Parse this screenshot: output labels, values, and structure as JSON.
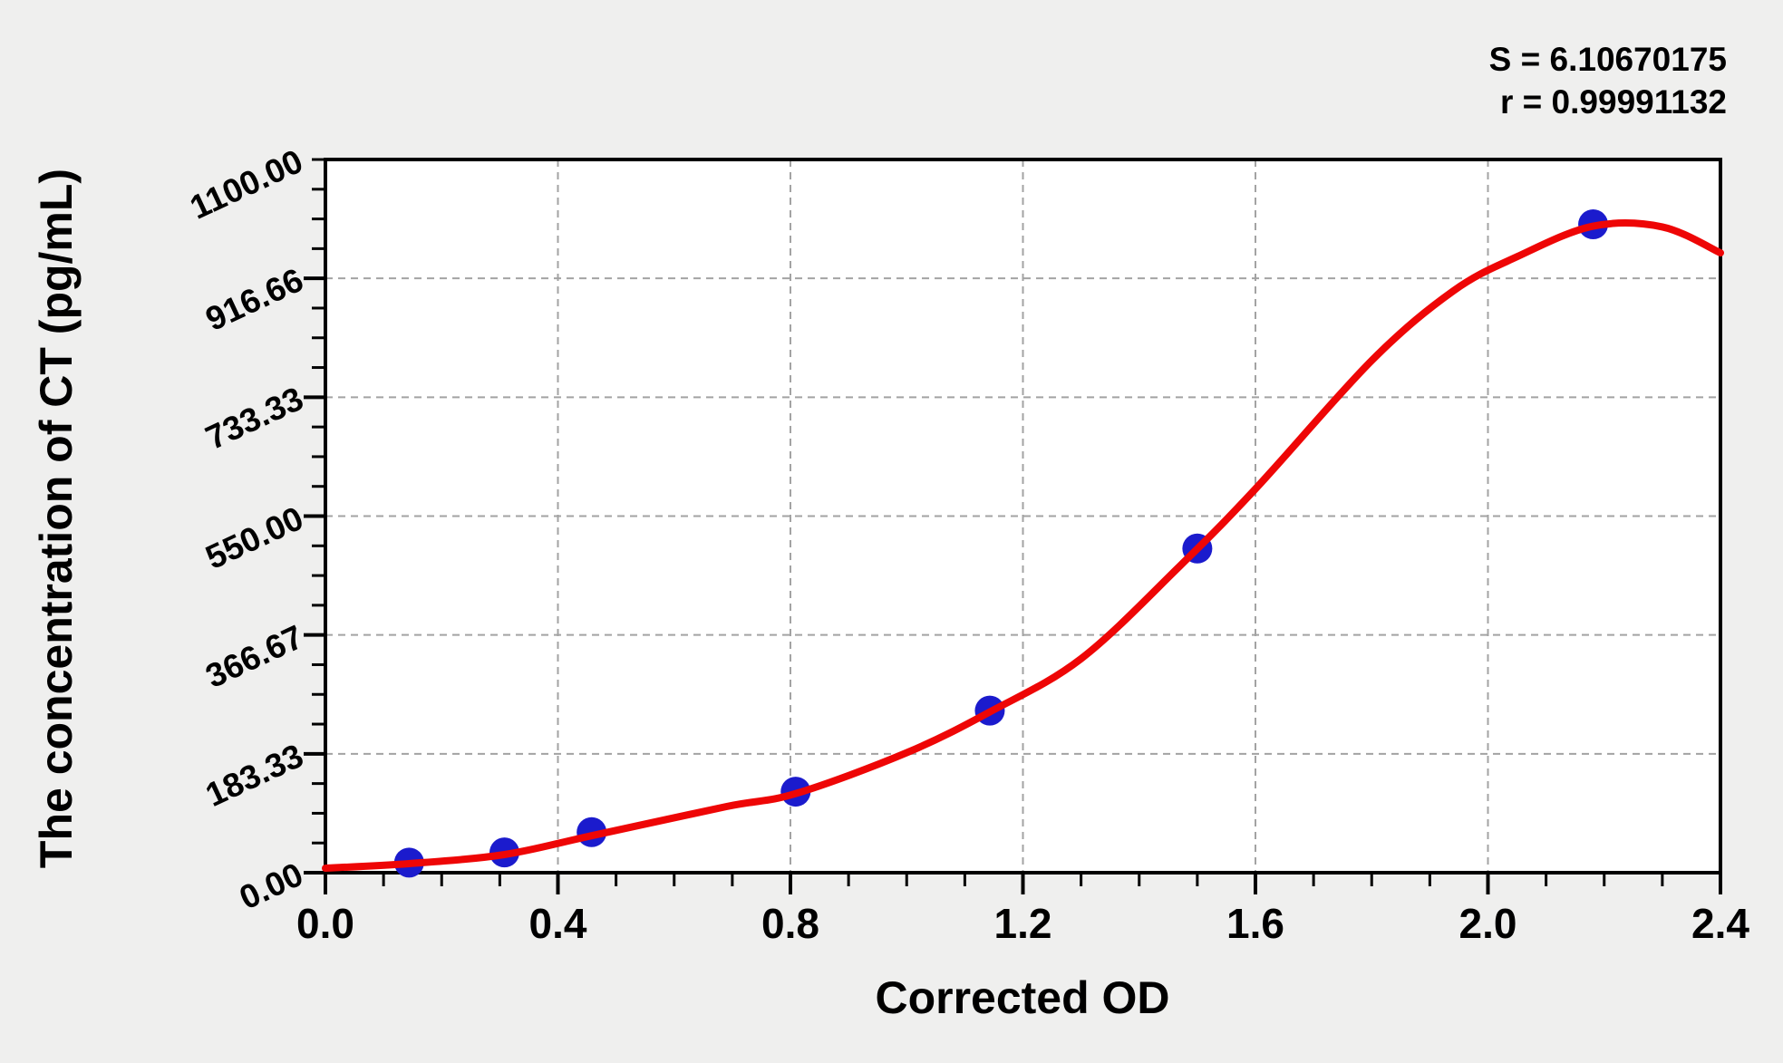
{
  "annotation": {
    "s_label": "S = 6.10670175",
    "r_label": "r = 0.99991132"
  },
  "chart_data": {
    "type": "scatter",
    "title": "",
    "xlabel": "Corrected OD",
    "ylabel": "The concentration of CT (pg/mL)",
    "xlim": [
      0.0,
      2.4
    ],
    "ylim": [
      0.0,
      1100.0
    ],
    "x_tick_labels": [
      "0.0",
      "0.4",
      "0.8",
      "1.2",
      "1.6",
      "2.0",
      "2.4"
    ],
    "x_tick_values": [
      0.0,
      0.4,
      0.8,
      1.2,
      1.6,
      2.0,
      2.4
    ],
    "y_tick_labels": [
      "0.00",
      "183.33",
      "366.67",
      "550.00",
      "733.33",
      "916.66",
      "1100.00"
    ],
    "y_tick_values": [
      0.0,
      183.33,
      366.67,
      550.0,
      733.33,
      916.66,
      1100.0
    ],
    "x_minor_ticks_per_interval": 3,
    "y_minor_ticks_per_interval": 3,
    "grid": "dashed-at-major-ticks",
    "legend": "none",
    "series": [
      {
        "name": "standard-points",
        "type": "scatter",
        "x": [
          0.144,
          0.308,
          0.458,
          0.809,
          1.143,
          1.5,
          2.181
        ],
        "y": [
          15.6,
          31.2,
          62.5,
          125.0,
          250.0,
          500.0,
          1000.0
        ]
      },
      {
        "name": "fit-curve",
        "type": "line",
        "x": [
          0.0,
          0.144,
          0.308,
          0.458,
          0.69,
          0.809,
          1.0,
          1.143,
          1.3,
          1.47,
          1.6,
          1.8,
          1.94,
          2.05,
          2.18,
          2.3,
          2.4
        ],
        "y": [
          7,
          14,
          28,
          57,
          102,
          122,
          185,
          248,
          330,
          473,
          592,
          790,
          897,
          950,
          997,
          996,
          956
        ]
      }
    ],
    "stats": {
      "S": "6.10670175",
      "r": "0.99991132"
    },
    "colors": {
      "curve": "#ee0606",
      "points": "#1b1bcd",
      "grid": "#a3a3a3",
      "frame": "#000000",
      "background": "#efefee",
      "plot_background": "#ffffff",
      "text": "#000000"
    }
  }
}
